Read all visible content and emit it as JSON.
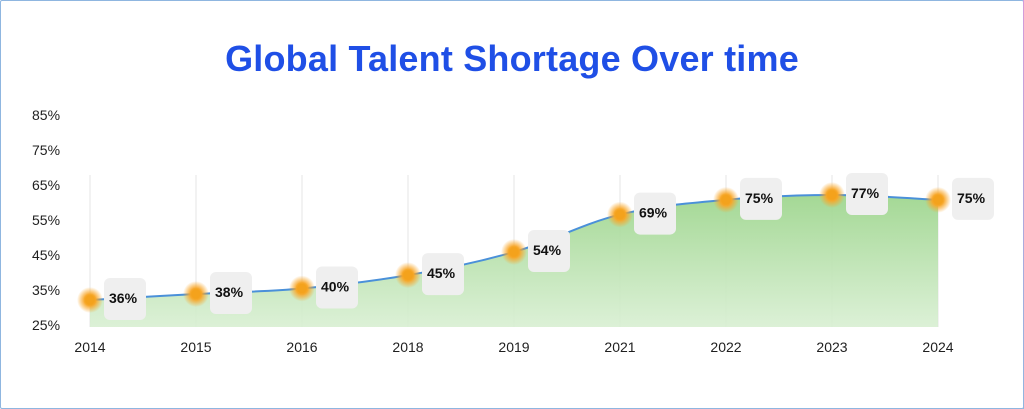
{
  "title": "Global Talent Shortage Over time",
  "chart_data": {
    "type": "area",
    "title": "Global Talent Shortage Over time",
    "xlabel": "",
    "ylabel": "",
    "categories": [
      "2014",
      "2015",
      "2016",
      "2018",
      "2019",
      "2021",
      "2022",
      "2023",
      "2024"
    ],
    "series": [
      {
        "values": [
          36,
          38,
          40,
          45,
          54,
          69,
          75,
          77,
          75
        ],
        "labels": [
          "36%",
          "38%",
          "40%",
          "45%",
          "54%",
          "69%",
          "75%",
          "77%",
          "75%"
        ]
      }
    ],
    "ytick_labels": [
      "25%",
      "35%",
      "45%",
      "55%",
      "65%",
      "75%",
      "85%"
    ],
    "grid": "vertical",
    "colors": {
      "line": "#4a90d9",
      "area_top": "#9fd68f",
      "area_bottom": "#d8efd2",
      "marker": "#f4a21d",
      "label_box": "#efefef",
      "title": "#1f4fe6"
    }
  }
}
